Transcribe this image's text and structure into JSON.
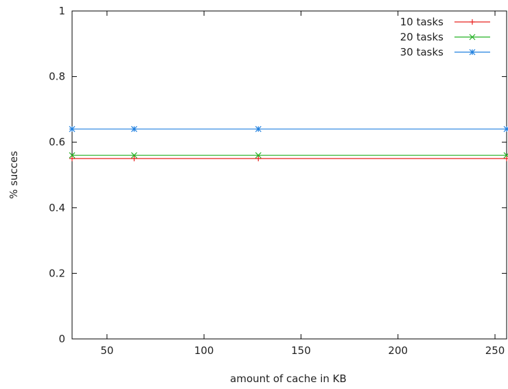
{
  "chart_data": {
    "type": "line",
    "title": "",
    "xlabel": "amount of cache in KB",
    "ylabel": "% succes",
    "xlim": [
      32,
      256
    ],
    "ylim": [
      0,
      1
    ],
    "xticks": [
      50,
      100,
      150,
      200,
      250
    ],
    "yticks": [
      0,
      0.2,
      0.4,
      0.6,
      0.8,
      1
    ],
    "grid": false,
    "legend_position": "top-right",
    "x": [
      32,
      64,
      128,
      256
    ],
    "series": [
      {
        "name": "10 tasks",
        "values": [
          0.55,
          0.55,
          0.55,
          0.55
        ],
        "color": "#e8201f",
        "marker": "plus"
      },
      {
        "name": "20 tasks",
        "values": [
          0.56,
          0.56,
          0.56,
          0.56
        ],
        "color": "#22b022",
        "marker": "cross"
      },
      {
        "name": "30 tasks",
        "values": [
          0.64,
          0.64,
          0.64,
          0.64
        ],
        "color": "#1f7fdf",
        "marker": "star"
      }
    ]
  }
}
